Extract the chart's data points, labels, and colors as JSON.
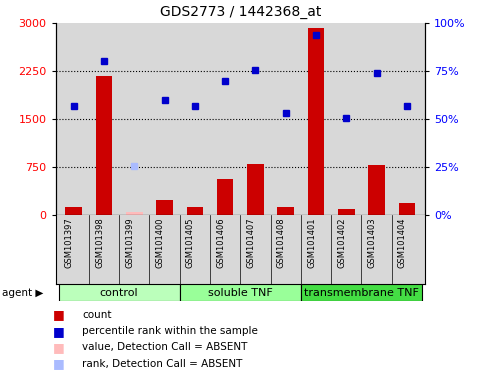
{
  "title": "GDS2773 / 1442368_at",
  "samples": [
    "GSM101397",
    "GSM101398",
    "GSM101399",
    "GSM101400",
    "GSM101405",
    "GSM101406",
    "GSM101407",
    "GSM101408",
    "GSM101401",
    "GSM101402",
    "GSM101403",
    "GSM101404"
  ],
  "counts": [
    130,
    2170,
    50,
    230,
    120,
    570,
    800,
    120,
    2920,
    90,
    780,
    190
  ],
  "percentile_ranks_left": [
    1700,
    2400,
    null,
    1800,
    1700,
    2100,
    2260,
    1590,
    2820,
    1510,
    2220,
    1700
  ],
  "absent_rank_idx": 2,
  "absent_rank_val": 760,
  "absent_count_idx": 2,
  "groups": [
    {
      "name": "control",
      "start": 0,
      "end": 4,
      "color": "#bbffbb"
    },
    {
      "name": "soluble TNF",
      "start": 4,
      "end": 8,
      "color": "#99ff99"
    },
    {
      "name": "transmembrane TNF",
      "start": 8,
      "end": 12,
      "color": "#44dd44"
    }
  ],
  "bar_color": "#cc0000",
  "dot_color": "#0000cc",
  "absent_bar_color": "#ffbbbb",
  "absent_dot_color": "#aabbff",
  "ylim_left": [
    0,
    3000
  ],
  "ylim_right": [
    0,
    100
  ],
  "yticks_left": [
    0,
    750,
    1500,
    2250,
    3000
  ],
  "yticks_right": [
    0,
    25,
    50,
    75,
    100
  ],
  "ytick_labels_left": [
    "0",
    "750",
    "1500",
    "2250",
    "3000"
  ],
  "ytick_labels_right": [
    "0%",
    "25%",
    "50%",
    "75%",
    "100%"
  ],
  "hlines": [
    750,
    1500,
    2250
  ],
  "bg_color": "#d8d8d8",
  "plot_bg": "#ffffff",
  "legend": [
    {
      "color": "#cc0000",
      "label": "count"
    },
    {
      "color": "#0000cc",
      "label": "percentile rank within the sample"
    },
    {
      "color": "#ffbbbb",
      "label": "value, Detection Call = ABSENT"
    },
    {
      "color": "#aabbff",
      "label": "rank, Detection Call = ABSENT"
    }
  ]
}
